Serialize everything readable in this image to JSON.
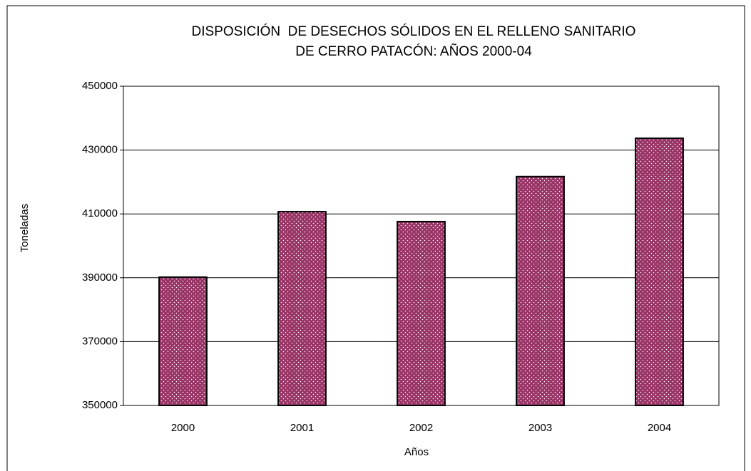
{
  "chart_data": {
    "type": "bar",
    "title": [
      "DISPOSICIÓN  DE DESECHOS SÓLIDOS EN EL RELLENO SANITARIO",
      "DE CERRO PATACÓN: AÑOS 2000-04"
    ],
    "x_label": "Años",
    "y_label": "Toneladas",
    "categories": [
      "2000",
      "2001",
      "2002",
      "2003",
      "2004"
    ],
    "values": [
      390200,
      410700,
      407600,
      421700,
      433700
    ],
    "color": "#993366",
    "ylim": [
      350000,
      450000
    ],
    "yticks": [
      350000,
      370000,
      390000,
      410000,
      430000,
      450000
    ],
    "grid": true
  }
}
